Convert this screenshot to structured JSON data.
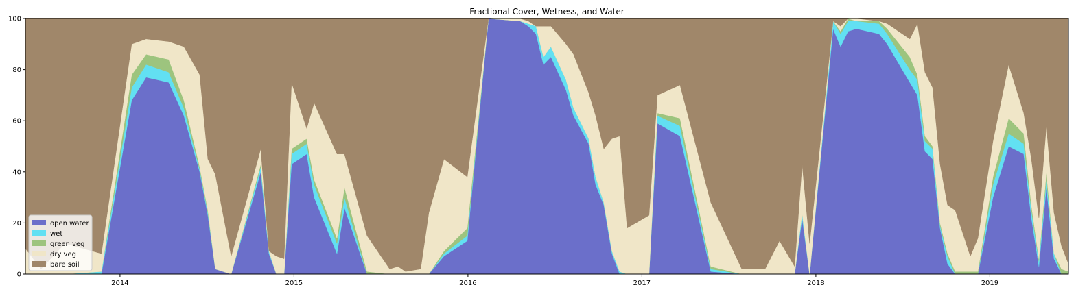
{
  "chart_data": {
    "type": "stacked-area",
    "title": "Fractional Cover, Wetness, and Water",
    "x": [
      2013.456,
      2013.546,
      2013.684,
      2013.893,
      2014.067,
      2014.15,
      2014.28,
      2014.367,
      2014.458,
      2014.505,
      2014.548,
      2014.639,
      2014.809,
      2014.856,
      2014.899,
      2014.943,
      2014.986,
      2015.073,
      2015.116,
      2015.247,
      2015.29,
      2015.42,
      2015.55,
      2015.598,
      2015.641,
      2015.728,
      2015.775,
      2015.862,
      2015.996,
      2016.118,
      2016.3,
      2016.347,
      2016.391,
      2016.434,
      2016.477,
      2016.564,
      2016.607,
      2016.694,
      2016.734,
      2016.781,
      2016.828,
      2016.872,
      2016.915,
      2017.041,
      2017.089,
      2017.219,
      2017.396,
      2017.574,
      2017.708,
      2017.791,
      2017.878,
      2017.921,
      2017.964,
      2018.099,
      2018.142,
      2018.185,
      2018.233,
      2018.363,
      2018.41,
      2018.54,
      2018.584,
      2018.627,
      2018.671,
      2018.714,
      2018.757,
      2018.801,
      2018.888,
      2018.931,
      2019.018,
      2019.108,
      2019.195,
      2019.239,
      2019.282,
      2019.325,
      2019.369,
      2019.412,
      2019.452
    ],
    "series": [
      {
        "name": "open water",
        "color": "#6b6fca",
        "values": [
          0,
          0,
          0,
          0,
          68,
          77,
          75,
          62,
          40,
          23,
          2,
          0,
          40,
          8,
          0,
          0,
          43,
          47,
          30,
          8,
          26,
          0,
          0,
          0,
          0,
          0,
          0,
          7,
          13,
          100,
          99,
          97,
          94,
          82,
          85,
          72,
          62,
          51,
          35,
          27,
          8,
          0,
          0,
          0,
          59,
          54,
          1,
          0,
          0,
          0,
          0,
          22,
          0,
          96,
          89,
          95,
          96,
          94,
          90,
          75,
          70,
          48,
          45,
          18,
          4,
          0,
          0,
          0,
          30,
          50,
          47,
          22,
          3,
          34,
          6,
          0,
          0
        ]
      },
      {
        "name": "wet",
        "color": "#62e0f2",
        "values": [
          0,
          0,
          0,
          1,
          5,
          5,
          4,
          3,
          1,
          1,
          0,
          0,
          2,
          1,
          0,
          0,
          4,
          4,
          5,
          4,
          4,
          0,
          0,
          0,
          0,
          0,
          0,
          1,
          2,
          0,
          0,
          1,
          3,
          3,
          4,
          4,
          3,
          2,
          3,
          1,
          1,
          1,
          0,
          0,
          3,
          4,
          1,
          0,
          0,
          0,
          0,
          2,
          0,
          3,
          5,
          4,
          3,
          4,
          4,
          5,
          6,
          4,
          4,
          1,
          3,
          0,
          0,
          0,
          5,
          5,
          4,
          3,
          2,
          3,
          2,
          0,
          0
        ]
      },
      {
        "name": "green veg",
        "color": "#9dc47e",
        "values": [
          0,
          0,
          0,
          0,
          5,
          4,
          5,
          3,
          1,
          1,
          0,
          0,
          1,
          0,
          0,
          0,
          2,
          2,
          2,
          2,
          4,
          1,
          0,
          0,
          0,
          0,
          0,
          1,
          3,
          0,
          0,
          0,
          0,
          0,
          0,
          0,
          0,
          0,
          0,
          0,
          0,
          0,
          0,
          0,
          1,
          3,
          1,
          0,
          0,
          0,
          0,
          0,
          0,
          0,
          1,
          1,
          0,
          1,
          2,
          5,
          2,
          2,
          1,
          1,
          1,
          1,
          1,
          1,
          3,
          6,
          4,
          2,
          1,
          3,
          0,
          2,
          1
        ]
      },
      {
        "name": "dry veg",
        "color": "#f0e6c8",
        "values": [
          10,
          2,
          12,
          7,
          12,
          6,
          7,
          21,
          36,
          20,
          37,
          7,
          6,
          0,
          7,
          6,
          26,
          4,
          30,
          33,
          13,
          14,
          2,
          3,
          1,
          2,
          24,
          36,
          20,
          0,
          1,
          1,
          0,
          12,
          8,
          14,
          21,
          18,
          24,
          21,
          44,
          53,
          18,
          23,
          7,
          13,
          25,
          2,
          2,
          13,
          3,
          19,
          12,
          0,
          2,
          0,
          1,
          0,
          2,
          7,
          20,
          25,
          23,
          23,
          19,
          24,
          6,
          13,
          14,
          21,
          8,
          18,
          16,
          18,
          16,
          9,
          3
        ]
      },
      {
        "name": "bare soil",
        "color": "#a0876a",
        "values": [
          90,
          98,
          88,
          92,
          10,
          8,
          9,
          11,
          22,
          55,
          61,
          93,
          51,
          91,
          93,
          94,
          25,
          43,
          33,
          53,
          53,
          85,
          98,
          97,
          99,
          98,
          76,
          55,
          62,
          0,
          0,
          1,
          3,
          3,
          3,
          10,
          14,
          29,
          38,
          51,
          47,
          46,
          82,
          77,
          30,
          26,
          72,
          98,
          98,
          87,
          97,
          57,
          88,
          1,
          3,
          0,
          0,
          1,
          2,
          8,
          2,
          21,
          27,
          57,
          73,
          75,
          93,
          86,
          48,
          18,
          37,
          55,
          78,
          42,
          76,
          89,
          96
        ]
      }
    ],
    "xlim": [
      2013.456,
      2019.452
    ],
    "xticks": [
      2014,
      2015,
      2016,
      2017,
      2018,
      2019
    ],
    "ylim": [
      0,
      100
    ],
    "yticks": [
      0,
      20,
      40,
      60,
      80,
      100
    ],
    "legend": "lower left"
  }
}
